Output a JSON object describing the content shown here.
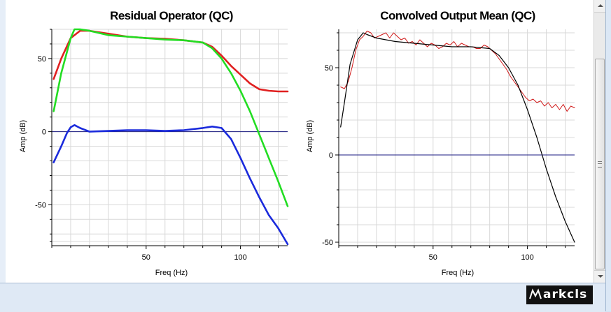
{
  "logo_text": "arkcls",
  "chart_data": [
    {
      "type": "line",
      "title": "Residual Operator (QC)",
      "xlabel": "Freq (Hz)",
      "ylabel": "Amp (dB)",
      "xlim": [
        0,
        125
      ],
      "ylim": [
        -78,
        70
      ],
      "xticks": [
        50,
        100
      ],
      "yticks": [
        50,
        0,
        -50
      ],
      "xticks_minor": [
        0,
        10,
        20,
        30,
        40,
        50,
        60,
        70,
        80,
        90,
        100,
        110,
        120
      ],
      "yticks_minor": [
        -75,
        -70,
        -60,
        -50,
        -40,
        -30,
        -20,
        -10,
        0,
        10,
        20,
        30,
        40,
        50,
        60,
        70
      ],
      "grid": true,
      "hline": 0,
      "series": [
        {
          "color": "#e02020",
          "x": [
            1,
            5,
            10,
            15,
            20,
            30,
            40,
            50,
            60,
            70,
            80,
            85,
            90,
            95,
            100,
            105,
            110,
            115,
            120,
            125
          ],
          "y": [
            36,
            50,
            64,
            69,
            69,
            67,
            65,
            64,
            63.5,
            62.5,
            61,
            58,
            52,
            45,
            39,
            33,
            29,
            28,
            27.5,
            27.5
          ]
        },
        {
          "color": "#22dd22",
          "x": [
            1,
            5,
            10,
            12,
            15,
            20,
            30,
            40,
            50,
            60,
            70,
            80,
            85,
            90,
            95,
            100,
            105,
            110,
            115,
            120,
            125
          ],
          "y": [
            14,
            40,
            64,
            70,
            70,
            69,
            66,
            65,
            64,
            63,
            62.5,
            61,
            57,
            50,
            40,
            28,
            14,
            -2,
            -18,
            -34,
            -51
          ]
        },
        {
          "color": "#1a2adc",
          "x": [
            1,
            5,
            8,
            10,
            12,
            15,
            20,
            30,
            40,
            50,
            60,
            70,
            80,
            85,
            90,
            95,
            100,
            105,
            110,
            115,
            120,
            125
          ],
          "y": [
            -21,
            -10,
            -1,
            3,
            4.5,
            2.5,
            0,
            0.5,
            1,
            1,
            0.5,
            1,
            2.5,
            3.5,
            2.5,
            -5,
            -18,
            -32,
            -45,
            -57,
            -66,
            -77
          ]
        }
      ]
    },
    {
      "type": "line",
      "title": "Convolved Output Mean (QC)",
      "xlabel": "Freq (Hz)",
      "ylabel": "Amp (dB)",
      "xlim": [
        0,
        125
      ],
      "ylim": [
        -52,
        72
      ],
      "xticks": [
        50,
        100
      ],
      "yticks": [
        50,
        0,
        -50
      ],
      "xticks_minor": [
        0,
        10,
        20,
        30,
        40,
        50,
        60,
        70,
        80,
        90,
        100,
        110,
        120
      ],
      "yticks_minor": [
        -50,
        -40,
        -30,
        -20,
        -10,
        0,
        10,
        20,
        30,
        40,
        50,
        60,
        70
      ],
      "grid": true,
      "hline": 0,
      "series": [
        {
          "color": "#d01818",
          "x": [
            1,
            3,
            5,
            7,
            9,
            11,
            13,
            15,
            17,
            19,
            21,
            23,
            25,
            27,
            29,
            31,
            33,
            35,
            37,
            39,
            41,
            43,
            45,
            47,
            49,
            51,
            53,
            55,
            57,
            59,
            61,
            63,
            65,
            67,
            69,
            71,
            73,
            75,
            77,
            79,
            81,
            83,
            85,
            87,
            89,
            91,
            93,
            95,
            97,
            99,
            101,
            103,
            105,
            107,
            109,
            111,
            113,
            115,
            117,
            119,
            121,
            123,
            125
          ],
          "y": [
            39,
            38,
            42,
            50,
            60,
            66,
            68,
            71,
            70,
            67,
            68,
            69,
            70,
            67,
            70,
            68,
            66,
            67,
            64,
            65,
            63,
            66,
            64,
            62,
            64,
            63,
            61,
            62,
            64,
            63,
            65,
            62,
            64,
            63,
            62,
            62,
            61,
            61,
            63,
            62,
            60,
            58,
            55,
            52,
            49,
            45,
            42,
            39,
            36,
            33,
            31,
            32,
            30,
            31,
            28,
            30,
            27,
            29,
            26,
            29,
            25,
            28,
            27
          ]
        },
        {
          "color": "#000000",
          "x": [
            1,
            3,
            6,
            10,
            13,
            15,
            20,
            30,
            40,
            50,
            60,
            70,
            80,
            85,
            90,
            95,
            100,
            105,
            110,
            115,
            120,
            125
          ],
          "y": [
            16,
            30,
            52,
            66,
            70,
            69,
            67,
            65,
            64,
            63,
            62,
            62,
            61,
            57,
            50,
            40,
            26,
            10,
            -8,
            -24,
            -38,
            -50
          ]
        }
      ]
    }
  ]
}
